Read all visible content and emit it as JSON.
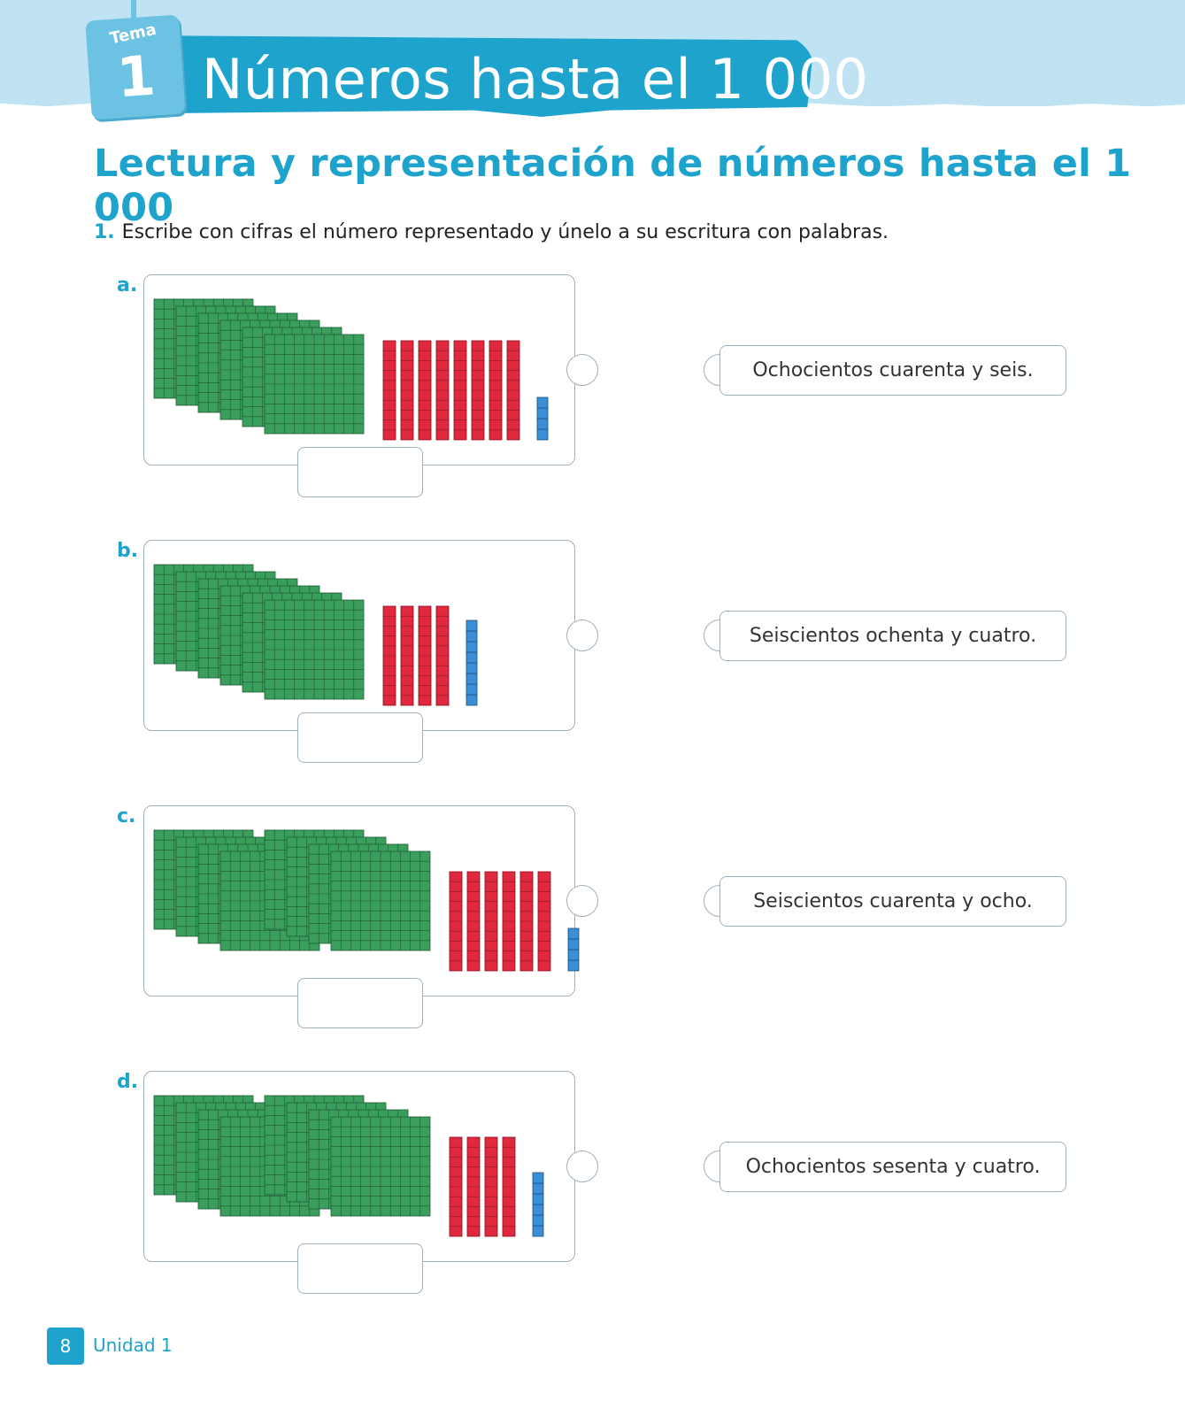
{
  "header": {
    "tema_label": "Tema",
    "tema_number": "1",
    "title": "Números hasta el 1 000"
  },
  "section_title": "Lectura y representación de números hasta el 1 000",
  "exercise": {
    "number": "1.",
    "text": "Escribe con cifras el número representado y únelo a su escritura con palabras."
  },
  "items": [
    {
      "letter": "a.",
      "hundreds": 6,
      "tens": 8,
      "units": 4,
      "words": "Ochocientos cuarenta y seis."
    },
    {
      "letter": "b.",
      "hundreds": 6,
      "tens": 4,
      "units": 8,
      "words": "Seiscientos ochenta y cuatro."
    },
    {
      "letter": "c.",
      "hundreds": 8,
      "tens": 6,
      "units": 4,
      "words": "Seiscientos cuarenta y ocho."
    },
    {
      "letter": "d.",
      "hundreds": 8,
      "tens": 4,
      "units": 6,
      "words": "Ochocientos sesenta y cuatro."
    }
  ],
  "colors": {
    "accent": "#1ea3cc",
    "hundreds": "#3a9e5c",
    "tens": "#e0293e",
    "units": "#3a8fd6"
  },
  "footer": {
    "page_number": "8",
    "unit_label": "Unidad 1"
  }
}
